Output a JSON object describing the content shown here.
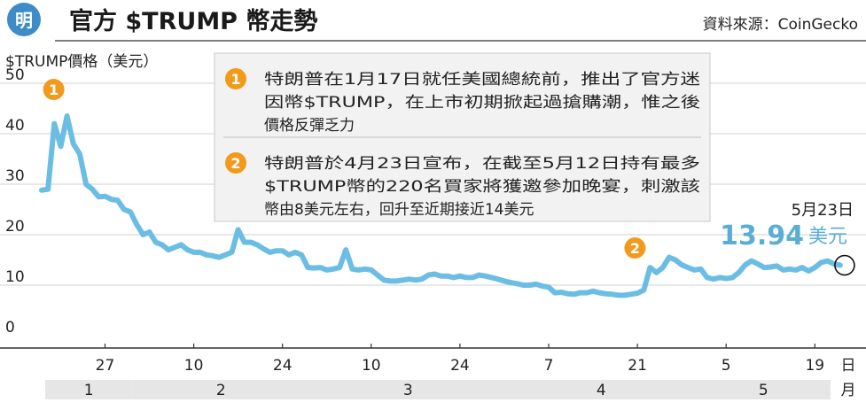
{
  "header": {
    "logo_char": "明",
    "title": "官方 $TRUMP 幣走勢",
    "source": "資料來源：CoinGecko"
  },
  "colors": {
    "line": "#6cbde3",
    "accent_blue": "#5aaed6",
    "marker_orange": "#f29a1c",
    "logo_blue": "#3d8cc8",
    "month_bar": "#e6e6e6",
    "note_bg": "#f2f2f2"
  },
  "chart_data": {
    "type": "line",
    "ylabel": "$TRUMP價格（美元）",
    "ylim": [
      0,
      50
    ],
    "yticks": [
      0,
      10,
      20,
      30,
      40,
      50
    ],
    "x_tick_labels": [
      {
        "label": "27",
        "date": "2025-01-27"
      },
      {
        "label": "10",
        "date": "2025-02-10"
      },
      {
        "label": "24",
        "date": "2025-02-24"
      },
      {
        "label": "10",
        "date": "2025-03-10"
      },
      {
        "label": "24",
        "date": "2025-03-24"
      },
      {
        "label": "7",
        "date": "2025-04-07"
      },
      {
        "label": "21",
        "date": "2025-04-21"
      },
      {
        "label": "5",
        "date": "2025-05-05"
      },
      {
        "label": "19",
        "date": "2025-05-19"
      }
    ],
    "x_unit": "日",
    "months": [
      {
        "label": "1",
        "start": "2025-01-17",
        "end": "2025-01-31"
      },
      {
        "label": "2",
        "start": "2025-02-01",
        "end": "2025-02-28"
      },
      {
        "label": "3",
        "start": "2025-03-01",
        "end": "2025-03-31"
      },
      {
        "label": "4",
        "start": "2025-04-01",
        "end": "2025-04-30"
      },
      {
        "label": "5",
        "start": "2025-05-01",
        "end": "2025-05-23"
      }
    ],
    "month_unit": "月",
    "grid": true,
    "series": [
      {
        "points": [
          [
            "2025-01-17",
            28.8
          ],
          [
            "2025-01-18",
            29.0
          ],
          [
            "2025-01-19",
            42.0
          ],
          [
            "2025-01-20",
            37.5
          ],
          [
            "2025-01-21",
            43.5
          ],
          [
            "2025-01-22",
            38.0
          ],
          [
            "2025-01-23",
            36.0
          ],
          [
            "2025-01-24",
            30.0
          ],
          [
            "2025-01-25",
            29.0
          ],
          [
            "2025-01-26",
            27.5
          ],
          [
            "2025-01-27",
            27.6
          ],
          [
            "2025-01-28",
            27.0
          ],
          [
            "2025-01-29",
            26.8
          ],
          [
            "2025-01-30",
            25.0
          ],
          [
            "2025-01-31",
            24.5
          ],
          [
            "2025-02-01",
            22.0
          ],
          [
            "2025-02-02",
            20.0
          ],
          [
            "2025-02-03",
            20.5
          ],
          [
            "2025-02-04",
            18.5
          ],
          [
            "2025-02-05",
            18.0
          ],
          [
            "2025-02-06",
            17.0
          ],
          [
            "2025-02-07",
            17.5
          ],
          [
            "2025-02-08",
            18.0
          ],
          [
            "2025-02-09",
            17.0
          ],
          [
            "2025-02-10",
            16.5
          ],
          [
            "2025-02-11",
            16.5
          ],
          [
            "2025-02-12",
            16.0
          ],
          [
            "2025-02-13",
            15.8
          ],
          [
            "2025-02-14",
            15.5
          ],
          [
            "2025-02-15",
            16.0
          ],
          [
            "2025-02-16",
            16.5
          ],
          [
            "2025-02-17",
            21.0
          ],
          [
            "2025-02-18",
            18.5
          ],
          [
            "2025-02-19",
            18.5
          ],
          [
            "2025-02-20",
            18.0
          ],
          [
            "2025-02-21",
            17.2
          ],
          [
            "2025-02-22",
            16.5
          ],
          [
            "2025-02-23",
            16.8
          ],
          [
            "2025-02-24",
            16.8
          ],
          [
            "2025-02-25",
            16.0
          ],
          [
            "2025-02-26",
            16.5
          ],
          [
            "2025-02-27",
            16.0
          ],
          [
            "2025-02-28",
            13.5
          ],
          [
            "2025-03-01",
            13.4
          ],
          [
            "2025-03-02",
            13.5
          ],
          [
            "2025-03-03",
            13.0
          ],
          [
            "2025-03-04",
            13.2
          ],
          [
            "2025-03-05",
            13.5
          ],
          [
            "2025-03-06",
            17.0
          ],
          [
            "2025-03-07",
            13.2
          ],
          [
            "2025-03-08",
            13.0
          ],
          [
            "2025-03-09",
            13.2
          ],
          [
            "2025-03-10",
            13.0
          ],
          [
            "2025-03-11",
            12.0
          ],
          [
            "2025-03-12",
            11.0
          ],
          [
            "2025-03-13",
            10.8
          ],
          [
            "2025-03-14",
            10.8
          ],
          [
            "2025-03-15",
            11.0
          ],
          [
            "2025-03-16",
            11.2
          ],
          [
            "2025-03-17",
            11.0
          ],
          [
            "2025-03-18",
            11.2
          ],
          [
            "2025-03-19",
            12.0
          ],
          [
            "2025-03-20",
            12.2
          ],
          [
            "2025-03-21",
            11.8
          ],
          [
            "2025-03-22",
            11.8
          ],
          [
            "2025-03-23",
            11.5
          ],
          [
            "2025-03-24",
            11.8
          ],
          [
            "2025-03-25",
            11.5
          ],
          [
            "2025-03-26",
            11.5
          ],
          [
            "2025-03-27",
            12.0
          ],
          [
            "2025-03-28",
            11.8
          ],
          [
            "2025-03-29",
            11.5
          ],
          [
            "2025-03-30",
            11.2
          ],
          [
            "2025-03-31",
            10.8
          ],
          [
            "2025-04-01",
            10.5
          ],
          [
            "2025-04-02",
            10.3
          ],
          [
            "2025-04-03",
            10.0
          ],
          [
            "2025-04-04",
            10.0
          ],
          [
            "2025-04-05",
            10.2
          ],
          [
            "2025-04-06",
            9.8
          ],
          [
            "2025-04-07",
            9.6
          ],
          [
            "2025-04-08",
            8.5
          ],
          [
            "2025-04-09",
            8.6
          ],
          [
            "2025-04-10",
            8.3
          ],
          [
            "2025-04-11",
            8.2
          ],
          [
            "2025-04-12",
            8.5
          ],
          [
            "2025-04-13",
            8.5
          ],
          [
            "2025-04-14",
            8.8
          ],
          [
            "2025-04-15",
            8.5
          ],
          [
            "2025-04-16",
            8.3
          ],
          [
            "2025-04-17",
            8.2
          ],
          [
            "2025-04-18",
            8.0
          ],
          [
            "2025-04-19",
            8.0
          ],
          [
            "2025-04-20",
            8.2
          ],
          [
            "2025-04-21",
            8.4
          ],
          [
            "2025-04-22",
            9.0
          ],
          [
            "2025-04-23",
            13.5
          ],
          [
            "2025-04-24",
            12.5
          ],
          [
            "2025-04-25",
            13.5
          ],
          [
            "2025-04-26",
            15.5
          ],
          [
            "2025-04-27",
            15.0
          ],
          [
            "2025-04-28",
            14.0
          ],
          [
            "2025-04-29",
            13.5
          ],
          [
            "2025-04-30",
            13.0
          ],
          [
            "2025-05-01",
            13.2
          ],
          [
            "2025-05-02",
            11.5
          ],
          [
            "2025-05-03",
            11.2
          ],
          [
            "2025-05-04",
            11.5
          ],
          [
            "2025-05-05",
            11.3
          ],
          [
            "2025-05-06",
            11.5
          ],
          [
            "2025-05-07",
            12.5
          ],
          [
            "2025-05-08",
            14.0
          ],
          [
            "2025-05-09",
            14.8
          ],
          [
            "2025-05-10",
            14.2
          ],
          [
            "2025-05-11",
            13.5
          ],
          [
            "2025-05-12",
            13.6
          ],
          [
            "2025-05-13",
            13.8
          ],
          [
            "2025-05-14",
            13.0
          ],
          [
            "2025-05-15",
            13.2
          ],
          [
            "2025-05-16",
            13.0
          ],
          [
            "2025-05-17",
            13.5
          ],
          [
            "2025-05-18",
            12.8
          ],
          [
            "2025-05-19",
            13.5
          ],
          [
            "2025-05-20",
            14.5
          ],
          [
            "2025-05-21",
            14.8
          ],
          [
            "2025-05-22",
            14.2
          ],
          [
            "2025-05-23",
            13.94
          ]
        ]
      }
    ],
    "markers": [
      {
        "number": "1",
        "date": "2025-01-21",
        "value": 43.5
      },
      {
        "number": "2",
        "date": "2025-04-23",
        "value": 13.5
      }
    ],
    "callout": {
      "date_label": "5月23日",
      "value": "13.94",
      "unit": "美元",
      "date": "2025-05-23"
    },
    "notes": [
      {
        "number": "1",
        "lines": [
          "特朗普在1月17日就任美國總統前，推出了官方迷",
          "因幣$TRUMP，在上市初期掀起過搶購潮，惟之後",
          "價格反彈乏力"
        ]
      },
      {
        "number": "2",
        "lines": [
          "特朗普於4月23日宣布，在截至5月12日持有最多",
          "$TRUMP幣的220名買家將獲邀參加晚宴，刺激該",
          "幣由8美元左右，回升至近期接近14美元"
        ]
      }
    ]
  }
}
